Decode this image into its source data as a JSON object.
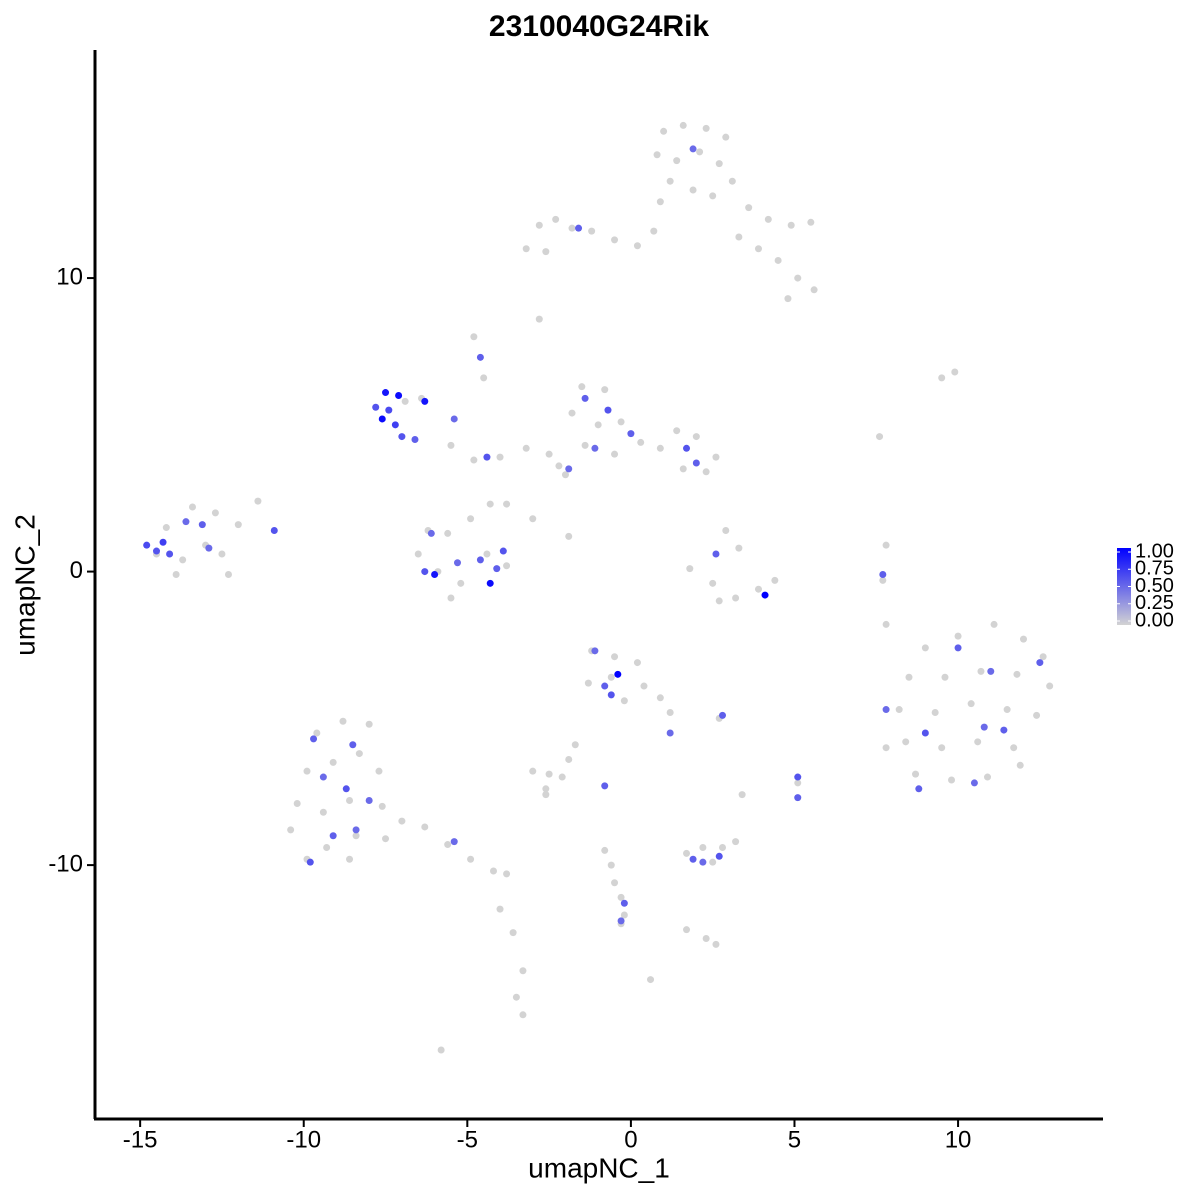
{
  "chart_data": {
    "type": "scatter",
    "title": "2310040G24Rik",
    "x_label": "umapNC_1",
    "y_label": "umapNC_2",
    "xlim": [
      -16.38,
      14.43
    ],
    "ylim": [
      -18.65,
      17.77
    ],
    "xticks": [
      -15,
      -10,
      -5,
      0,
      5,
      10
    ],
    "yticks": [
      -10,
      0,
      10
    ],
    "color_low": "#d3d3d3",
    "color_high": "#0000ff",
    "color_lim": [
      0,
      1
    ],
    "color_ticks": [
      {
        "value": 0,
        "label": "0.00"
      },
      {
        "value": 0.25,
        "label": "0.25"
      },
      {
        "value": 0.5,
        "label": "0.50"
      },
      {
        "value": 0.75,
        "label": "0.75"
      },
      {
        "value": 1,
        "label": "1.00"
      }
    ],
    "x": [
      1.0,
      1.6,
      2.3,
      2.9,
      0.8,
      1.4,
      2.1,
      2.7,
      3.1,
      1.2,
      1.9,
      2.5,
      0.9,
      3.6,
      4.2,
      4.9,
      5.5,
      3.3,
      3.9,
      4.5,
      5.1,
      5.6,
      4.8,
      0.7,
      -3.2,
      -2.8,
      -2.3,
      -1.8,
      -1.2,
      -0.5,
      0.2,
      -2.6,
      -2.8,
      -6.9,
      -6.4,
      -5.5,
      -4.8,
      -4.0,
      -3.2,
      -2.5,
      -2.0,
      -3.8,
      -3.0,
      -1.9,
      -4.8,
      -4.5,
      -7.8,
      -7.5,
      -7.6,
      -7.2,
      -7.1,
      -7.4,
      -7.0,
      -6.6,
      -6.3,
      -5.4,
      -4.4,
      -4.6,
      -1.5,
      -0.8,
      -1.8,
      -1.0,
      -0.3,
      -1.4,
      -0.5,
      0.3,
      0.9,
      1.4,
      2.0,
      2.6,
      1.6,
      2.3,
      -2.2,
      -1.4,
      -0.7,
      -1.1,
      0.0,
      1.7,
      2.0,
      -1.9,
      -14.2,
      -13.4,
      -12.7,
      -14.5,
      -13.7,
      -13.0,
      -12.5,
      -13.9,
      -12.3,
      -11.4,
      -12.0,
      -14.8,
      -14.3,
      -14.1,
      -13.6,
      -13.1,
      -12.9,
      -14.5,
      -10.9,
      -6.2,
      -5.6,
      -6.5,
      -5.9,
      -5.2,
      -4.4,
      -3.8,
      -4.9,
      -4.3,
      -5.5,
      -6.3,
      -6.0,
      -5.3,
      -4.6,
      -4.3,
      -3.9,
      -4.1,
      -6.1,
      1.8,
      2.5,
      3.2,
      3.9,
      4.4,
      2.9,
      3.3,
      2.7,
      7.8,
      7.7,
      7.6,
      9.5,
      9.9,
      7.8,
      4.1,
      2.6,
      7.7,
      9.0,
      10.0,
      11.1,
      12.0,
      12.6,
      8.5,
      9.6,
      10.7,
      11.8,
      12.8,
      8.2,
      9.3,
      10.4,
      11.5,
      12.4,
      8.4,
      9.5,
      10.6,
      11.7,
      8.7,
      9.8,
      10.9,
      11.9,
      7.8,
      10.0,
      11.0,
      12.5,
      9.0,
      10.8,
      11.4,
      10.5,
      8.8,
      7.8,
      -1.2,
      -0.5,
      0.2,
      -1.3,
      -0.6,
      0.4,
      0.9,
      -0.2,
      1.2,
      -1.7,
      -1.9,
      2.7,
      -1.1,
      -0.4,
      -0.8,
      -0.6,
      2.8,
      1.2,
      -9.6,
      -8.8,
      -8.0,
      -9.9,
      -9.1,
      -8.3,
      -7.7,
      -10.2,
      -9.4,
      -8.6,
      -7.6,
      -10.4,
      -9.3,
      -8.4,
      -7.5,
      -9.9,
      -8.6,
      -7.0,
      -6.3,
      -5.6,
      -4.9,
      -4.2,
      -3.8,
      -4.0,
      -3.6,
      -3.3,
      -3.5,
      -3.3,
      -5.8,
      -9.7,
      -8.5,
      -9.4,
      -8.7,
      -8.0,
      -9.1,
      -8.4,
      -9.8,
      -5.4,
      1.7,
      2.2,
      2.8,
      3.2,
      2.5,
      2.3,
      2.6,
      1.7,
      1.9,
      2.7,
      2.2,
      -3.0,
      -2.5,
      -2.1,
      -2.6,
      -2.6,
      3.4,
      5.1,
      0.6,
      -0.8,
      5.1,
      5.1,
      -0.8,
      -0.6,
      -0.5,
      -0.3,
      -0.2,
      -0.3,
      -0.2,
      -0.3,
      1.9,
      -1.6
    ],
    "values": [
      15.0,
      15.2,
      15.1,
      14.8,
      14.2,
      14.0,
      14.3,
      13.9,
      13.3,
      13.3,
      13.0,
      12.8,
      12.6,
      12.4,
      12.0,
      11.8,
      11.9,
      11.4,
      11.0,
      10.6,
      10.0,
      9.6,
      9.3,
      11.6,
      11.0,
      11.8,
      12.0,
      11.7,
      11.6,
      11.3,
      11.1,
      10.9,
      8.6,
      5.8,
      5.9,
      4.3,
      3.8,
      3.9,
      4.2,
      4.0,
      3.3,
      2.3,
      1.8,
      1.2,
      8.0,
      6.6,
      5.6,
      6.1,
      5.2,
      5.0,
      6.0,
      5.5,
      4.6,
      4.5,
      5.8,
      5.2,
      3.9,
      7.3,
      6.3,
      6.2,
      5.4,
      5.0,
      5.1,
      4.3,
      4.0,
      4.4,
      4.2,
      4.8,
      4.6,
      3.9,
      3.5,
      3.4,
      3.6,
      5.9,
      5.5,
      4.2,
      4.7,
      4.2,
      3.7,
      3.5,
      1.5,
      2.2,
      2.0,
      0.6,
      0.4,
      0.9,
      0.6,
      -0.1,
      -0.1,
      2.4,
      1.6,
      0.9,
      1.0,
      0.6,
      1.7,
      1.6,
      0.8,
      0.7,
      1.4,
      1.4,
      1.3,
      0.6,
      0.0,
      -0.4,
      0.6,
      0.2,
      1.8,
      2.3,
      -0.9,
      0.0,
      -0.1,
      0.3,
      0.4,
      -0.4,
      0.7,
      0.1,
      1.3,
      0.1,
      -0.4,
      -0.9,
      -0.6,
      -0.3,
      1.4,
      0.8,
      -1.0,
      0.9,
      -0.3,
      4.6,
      6.6,
      6.8,
      -1.8,
      -0.8,
      0.6,
      -0.1,
      -2.6,
      -2.2,
      -1.8,
      -2.3,
      -2.9,
      -3.6,
      -3.6,
      -3.4,
      -3.5,
      -3.9,
      -4.7,
      -4.8,
      -4.5,
      -4.7,
      -4.9,
      -5.8,
      -6.0,
      -5.8,
      -6.0,
      -6.9,
      -7.1,
      -7.0,
      -6.6,
      -6.0,
      -2.6,
      -3.4,
      -3.1,
      -5.5,
      -5.3,
      -5.4,
      -7.2,
      -7.4,
      -4.7,
      -2.7,
      -2.9,
      -3.1,
      -3.8,
      -3.6,
      -3.9,
      -4.3,
      -4.4,
      -4.8,
      -5.9,
      -6.4,
      -5.0,
      -2.7,
      -3.5,
      -3.9,
      -4.2,
      -4.9,
      -5.5,
      -5.5,
      -5.1,
      -5.2,
      -6.8,
      -6.5,
      -6.2,
      -6.8,
      -7.9,
      -8.2,
      -7.8,
      -8.0,
      -8.8,
      -9.4,
      -9.0,
      -9.1,
      -9.8,
      -9.8,
      -8.5,
      -8.7,
      -9.3,
      -9.8,
      -10.2,
      -10.3,
      -11.5,
      -12.3,
      -13.6,
      -14.5,
      -15.1,
      -16.3,
      -5.7,
      -5.9,
      -7.0,
      -7.4,
      -7.8,
      -9.0,
      -8.8,
      -9.9,
      -9.2,
      -9.6,
      -9.4,
      -9.4,
      -9.2,
      -9.9,
      -12.5,
      -12.7,
      -12.2,
      -9.8,
      -9.7,
      -9.9,
      -6.8,
      -6.9,
      -7.0,
      -7.4,
      -7.6,
      -7.6,
      -7.2,
      -13.9,
      -7.3,
      -7.7,
      -7.0,
      -9.5,
      -10.0,
      -10.6,
      -11.1,
      -11.7,
      -12.0,
      -11.3,
      -11.9,
      14.4,
      11.7
    ],
    "expression": [
      0,
      0,
      0,
      0,
      0,
      0,
      0,
      0,
      0,
      0,
      0,
      0,
      0,
      0,
      0,
      0,
      0,
      0,
      0,
      0,
      0,
      0,
      0,
      0,
      0,
      0,
      0,
      0,
      0,
      0,
      0,
      0,
      0,
      0,
      0,
      0,
      0,
      0,
      0,
      0,
      0,
      0,
      0,
      0,
      0,
      0,
      0.6,
      0.9,
      0.95,
      0.7,
      0.95,
      0.65,
      0.6,
      0.55,
      0.9,
      0.5,
      0.6,
      0.55,
      0,
      0,
      0,
      0,
      0,
      0,
      0,
      0,
      0,
      0,
      0,
      0,
      0,
      0,
      0,
      0.55,
      0.6,
      0.5,
      0.55,
      0.6,
      0.55,
      0.5,
      0,
      0,
      0,
      0,
      0,
      0,
      0,
      0,
      0,
      0,
      0,
      0.65,
      0.7,
      0.6,
      0.5,
      0.55,
      0.5,
      0.6,
      0.6,
      0,
      0,
      0,
      0,
      0,
      0,
      0,
      0,
      0,
      0,
      0.6,
      0.9,
      0.5,
      0.55,
      0.95,
      0.6,
      0.55,
      0.5,
      0,
      0,
      0,
      0,
      0,
      0,
      0,
      0,
      0,
      0,
      0,
      0,
      0,
      0,
      1.0,
      0.55,
      0.55,
      0,
      0,
      0,
      0,
      0,
      0,
      0,
      0,
      0,
      0,
      0,
      0,
      0,
      0,
      0,
      0,
      0,
      0,
      0,
      0,
      0,
      0,
      0,
      0,
      0.55,
      0.5,
      0.55,
      0.6,
      0.5,
      0.55,
      0.5,
      0.55,
      0.5,
      0,
      0,
      0,
      0,
      0,
      0,
      0,
      0,
      0,
      0,
      0,
      0,
      0.5,
      1.0,
      0.55,
      0.6,
      0.55,
      0.5,
      0,
      0,
      0,
      0,
      0,
      0,
      0,
      0,
      0,
      0,
      0,
      0,
      0,
      0,
      0,
      0,
      0,
      0,
      0,
      0,
      0,
      0,
      0,
      0,
      0,
      0,
      0,
      0,
      0,
      0.55,
      0.55,
      0.5,
      0.6,
      0.5,
      0.55,
      0.5,
      0.6,
      0.5,
      0,
      0,
      0,
      0,
      0,
      0,
      0,
      0,
      0.55,
      0.6,
      0.5,
      0,
      0,
      0,
      0,
      0,
      0,
      0,
      0,
      0.55,
      0.55,
      0.6,
      0,
      0,
      0,
      0,
      0,
      0,
      0.55,
      0.5,
      0.5,
      0.55
    ]
  }
}
